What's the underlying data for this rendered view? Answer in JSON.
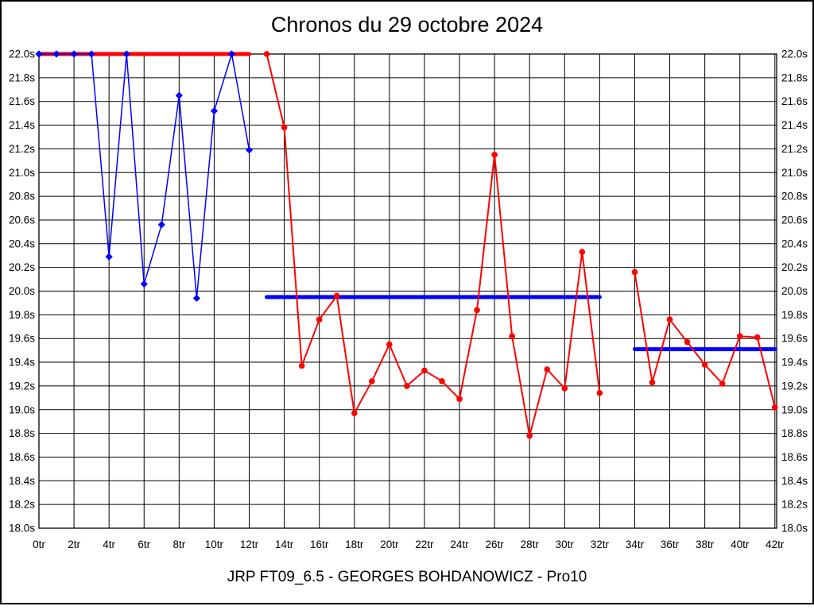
{
  "page": {
    "title": "Chronos du 29 octobre 2024",
    "caption": "JRP FT09_6.5 - GEORGES BOHDANOWICZ - Pro10"
  },
  "chart_data": {
    "type": "line",
    "title": "Chronos du 29 octobre 2024",
    "subtitle": "JRP FT09_6.5 - GEORGES BOHDANOWICZ - Pro10",
    "x_unit": "tr",
    "y_unit": "s",
    "xlim": [
      0,
      42.1
    ],
    "ylim": [
      18.0,
      22.0
    ],
    "x_tick_step": 2,
    "y_tick_step": 0.2,
    "grid": true,
    "legend": "none",
    "x_tick_labels": [
      "0tr",
      "2tr",
      "4tr",
      "6tr",
      "8tr",
      "10tr",
      "12tr",
      "14tr",
      "16tr",
      "18tr",
      "20tr",
      "22tr",
      "24tr",
      "26tr",
      "28tr",
      "30tr",
      "32tr",
      "34tr",
      "36tr",
      "38tr",
      "40tr",
      "42tr"
    ],
    "y_tick_labels": [
      "22.0s",
      "21.8s",
      "21.6s",
      "21.4s",
      "21.2s",
      "21.0s",
      "20.8s",
      "20.6s",
      "20.4s",
      "20.2s",
      "20.0s",
      "19.8s",
      "19.6s",
      "19.4s",
      "19.2s",
      "19.0s",
      "18.8s",
      "18.6s",
      "18.4s",
      "18.2s",
      "18.0s"
    ],
    "colors": {
      "run1_series": "#0000ff",
      "run1_average": "#ff0000",
      "run2_series": "#ff0000",
      "run2_average": "#0000ff",
      "grid": "#000000",
      "background": "#ffffff",
      "text": "#000000"
    },
    "series": [
      {
        "name": "run-1-laps",
        "color": "#0000ff",
        "marker": "diamond",
        "line_width": 1.5,
        "x": [
          0,
          1,
          2,
          3,
          4,
          5,
          6,
          7,
          8,
          9,
          10,
          11,
          12
        ],
        "y": [
          22.0,
          22.0,
          22.0,
          22.0,
          20.29,
          22.0,
          20.06,
          20.56,
          21.65,
          19.94,
          21.52,
          22.0,
          21.19
        ]
      },
      {
        "name": "run-2-laps",
        "color": "#ff0000",
        "marker": "circle",
        "line_width": 2,
        "x": [
          13,
          14,
          15,
          16,
          17,
          18,
          19,
          20,
          21,
          22,
          23,
          24,
          25,
          26,
          27,
          28,
          29,
          30,
          31,
          32
        ],
        "y": [
          22.0,
          21.38,
          19.37,
          19.76,
          19.96,
          18.97,
          19.24,
          19.55,
          19.2,
          19.33,
          19.24,
          19.09,
          19.84,
          21.15,
          19.62,
          18.78,
          19.34,
          19.18,
          20.33,
          19.14
        ]
      },
      {
        "name": "run-3-laps",
        "color": "#ff0000",
        "marker": "circle",
        "line_width": 2,
        "x": [
          34,
          35,
          36,
          37,
          38,
          39,
          40,
          41,
          42
        ],
        "y": [
          20.16,
          19.23,
          19.76,
          19.57,
          19.38,
          19.22,
          19.62,
          19.61,
          19.02
        ]
      }
    ],
    "average_lines": [
      {
        "name": "run-1-average",
        "color": "#ff0000",
        "value": 22.0,
        "x_start": 0,
        "x_end": 12,
        "width": 5
      },
      {
        "name": "run-2-average",
        "color": "#0000ff",
        "value": 19.95,
        "x_start": 13,
        "x_end": 32,
        "width": 5
      },
      {
        "name": "run-3-average",
        "color": "#0000ff",
        "value": 19.51,
        "x_start": 34,
        "x_end": 42,
        "width": 5
      }
    ]
  }
}
